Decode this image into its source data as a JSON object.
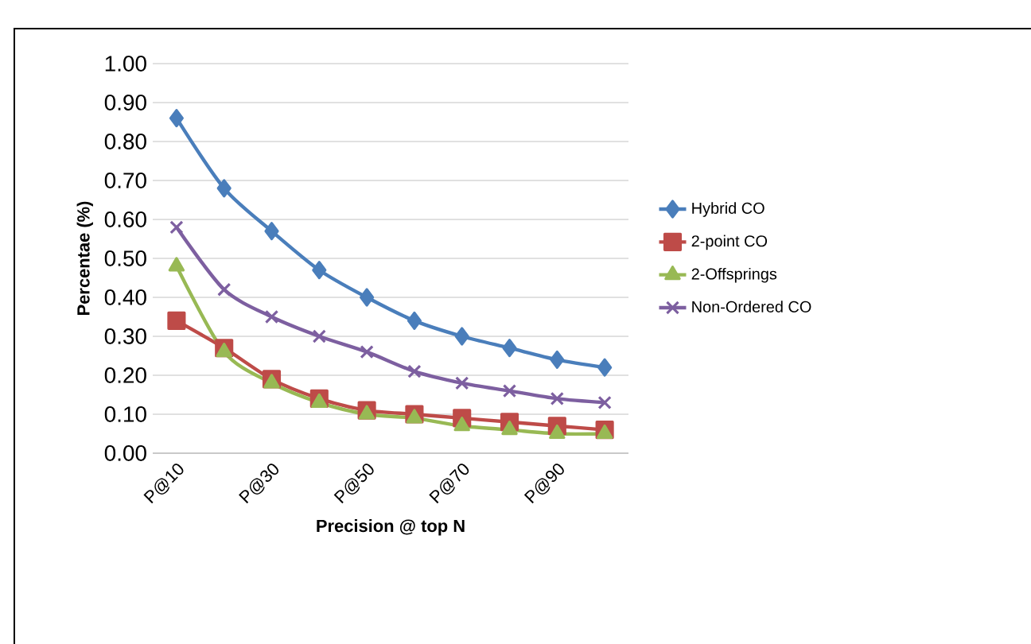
{
  "chart_data": {
    "type": "line",
    "xlabel": "Precision @ top N",
    "ylabel": "Percentae (%)",
    "categories": [
      "P@10",
      null,
      "P@30",
      null,
      "P@50",
      null,
      "P@70",
      null,
      "P@90",
      null
    ],
    "series": [
      {
        "name": "Hybrid CO",
        "color": "#4a7ebb",
        "marker": "diamond",
        "values": [
          0.86,
          0.68,
          0.57,
          0.47,
          0.4,
          0.34,
          0.3,
          0.27,
          0.24,
          0.22
        ]
      },
      {
        "name": "2-point CO",
        "color": "#be4b48",
        "marker": "square",
        "values": [
          0.34,
          0.27,
          0.19,
          0.14,
          0.11,
          0.1,
          0.09,
          0.08,
          0.07,
          0.06
        ]
      },
      {
        "name": "2-Offsprings",
        "color": "#98b954",
        "marker": "triangle",
        "values": [
          0.48,
          0.26,
          0.18,
          0.13,
          0.1,
          0.09,
          0.07,
          0.06,
          0.05,
          0.05
        ]
      },
      {
        "name": "Non-Ordered  CO",
        "color": "#7d5fa0",
        "marker": "cross",
        "values": [
          0.58,
          0.42,
          0.35,
          0.3,
          0.26,
          0.21,
          0.18,
          0.16,
          0.14,
          0.13
        ]
      }
    ],
    "ylim": [
      0,
      1
    ],
    "yticks": [
      {
        "value": 0,
        "label": "0.00"
      },
      {
        "value": 0.1,
        "label": "0.10"
      },
      {
        "value": 0.2,
        "label": "0.20"
      },
      {
        "value": 0.3,
        "label": "0.30"
      },
      {
        "value": 0.4,
        "label": "0.40"
      },
      {
        "value": 0.5,
        "label": "0.50"
      },
      {
        "value": 0.6,
        "label": "0.60"
      },
      {
        "value": 0.7,
        "label": "0.70"
      },
      {
        "value": 0.8,
        "label": "0.80"
      },
      {
        "value": 0.9,
        "label": "0.90"
      },
      {
        "value": 1,
        "label": "1.00"
      }
    ],
    "grid": "y",
    "legend": "right",
    "line_style": "solid"
  }
}
